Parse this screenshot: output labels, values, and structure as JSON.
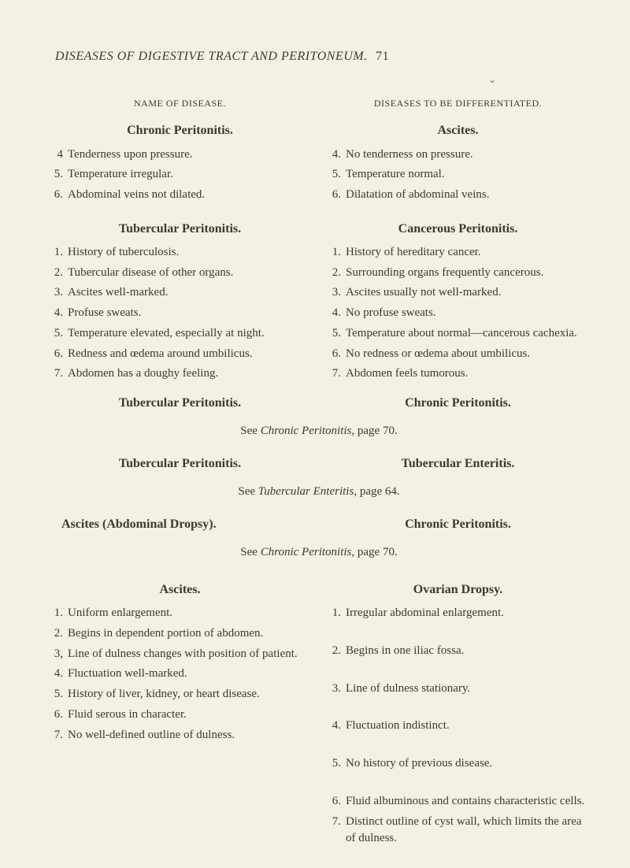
{
  "background_color": "#f4f0e6",
  "text_color": "#3a3a2e",
  "running_head": "DISEASES OF DIGESTIVE TRACT AND PERITONEUM.",
  "page_number": "71",
  "columns_header": {
    "left": "NAME OF DISEASE.",
    "right": "DISEASES TO BE DIFFERENTIATED."
  },
  "block1": {
    "left_title": "Chronic Peritonitis.",
    "right_title": "Ascites.",
    "left_items": [
      {
        "n": "4",
        "t": "Tenderness upon pressure."
      },
      {
        "n": "5.",
        "t": "Temperature irregular."
      },
      {
        "n": "6.",
        "t": "Abdominal veins not dilated."
      }
    ],
    "right_items": [
      {
        "n": "4.",
        "t": "No tenderness on pressure."
      },
      {
        "n": "5.",
        "t": "Temperature normal."
      },
      {
        "n": "6.",
        "t": "Dilatation of abdominal veins."
      }
    ]
  },
  "block2": {
    "left_title": "Tubercular Peritonitis.",
    "right_title": "Cancerous Peritonitis.",
    "left_items": [
      {
        "n": "1.",
        "t": "History of tuberculosis."
      },
      {
        "n": "2.",
        "t": "Tubercular disease of other organs."
      },
      {
        "n": "3.",
        "t": "Ascites well-marked."
      },
      {
        "n": "4.",
        "t": "Profuse sweats."
      },
      {
        "n": "5.",
        "t": "Temperature elevated, especially at night."
      },
      {
        "n": "6.",
        "t": "Redness and œdema around um­bilicus."
      },
      {
        "n": "7.",
        "t": "Abdomen has a doughy feeling."
      }
    ],
    "right_items": [
      {
        "n": "1.",
        "t": "History of hereditary cancer."
      },
      {
        "n": "2.",
        "t": "Surrounding organs frequently can­cerous."
      },
      {
        "n": "3.",
        "t": "Ascites usually not well-marked."
      },
      {
        "n": "4.",
        "t": "No profuse sweats."
      },
      {
        "n": "5.",
        "t": "Temperature about normal—can­cerous cachexia."
      },
      {
        "n": "6.",
        "t": "No redness or œdema about um­bilicus."
      },
      {
        "n": "7.",
        "t": "Abdomen feels tumorous."
      }
    ]
  },
  "pair1": {
    "left": "Tubercular Peritonitis.",
    "right": "Chronic Peritonitis.",
    "ref_pre": "See ",
    "ref_ital": "Chronic Peritonitis",
    "ref_post": ", page 70."
  },
  "pair2": {
    "left": "Tubercular Peritonitis.",
    "right": "Tubercular Enteritis.",
    "ref_pre": "See ",
    "ref_ital": "Tubercular Enteritis",
    "ref_post": ", page 64."
  },
  "pair3": {
    "left": "Ascites (Abdominal Dropsy).",
    "right": "Chronic Peritonitis.",
    "ref_pre": "See ",
    "ref_ital": "Chronic Peritonitis",
    "ref_post": ", page 70."
  },
  "block3": {
    "left_title": "Ascites.",
    "right_title": "Ovarian Dropsy.",
    "left_items": [
      {
        "n": "1.",
        "t": "Uniform enlargement."
      },
      {
        "n": "2.",
        "t": "Begins in dependent portion of abdomen."
      },
      {
        "n": "3,",
        "t": "Line of dulness changes with po­sition of patient."
      },
      {
        "n": "4.",
        "t": "Fluctuation well-marked."
      },
      {
        "n": "5.",
        "t": "History of liver, kidney, or heart disease."
      },
      {
        "n": "6.",
        "t": "Fluid serous in character."
      },
      {
        "n": "7.",
        "t": "No well-defined outline of dul­ness."
      }
    ],
    "right_items": [
      {
        "n": "1.",
        "t": "Irregular abdominal enlargement."
      },
      {
        "n": "2.",
        "t": "Begins in one iliac fossa."
      },
      {
        "n": "3.",
        "t": "Line of dulness stationary."
      },
      {
        "n": "4.",
        "t": "Fluctuation indistinct."
      },
      {
        "n": "5.",
        "t": "No history of previous disease."
      },
      {
        "n": "6.",
        "t": "Fluid albuminous and contains characteristic cells."
      },
      {
        "n": "7.",
        "t": "Distinct outline of cyst wall, which limits the area of dulness."
      }
    ],
    "right_item_spacing_index_single": [
      0,
      1,
      3,
      4
    ],
    "right_item_spacing_index_double": [
      2
    ]
  }
}
